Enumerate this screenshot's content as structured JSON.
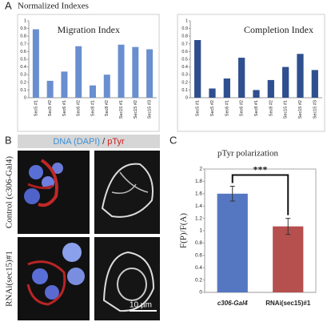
{
  "panels": {
    "a": "A",
    "b": "B",
    "c": "C"
  },
  "heading": "Normalized Indexes",
  "chart_data": [
    {
      "type": "bar",
      "title": "Migration Index",
      "categories": [
        "Sec5 #1",
        "Sec5 #2",
        "Sec6 #1",
        "Sec6 #2",
        "Sec8 #1",
        "Sec8 #2",
        "Sec15 #1",
        "Sec15 #2",
        "Sec15 #3"
      ],
      "values": [
        0.89,
        0.22,
        0.34,
        0.67,
        0.16,
        0.3,
        0.69,
        0.66,
        0.63
      ],
      "color": "#6a8fd0",
      "ylim": [
        0,
        1
      ],
      "yticks": [
        0,
        0.1,
        0.2,
        0.3,
        0.4,
        0.5,
        0.6,
        0.7,
        0.8,
        0.9,
        1
      ]
    },
    {
      "type": "bar",
      "title": "Completion Index",
      "categories": [
        "Sec5 #1",
        "Sec5 #2",
        "Sec6 #1",
        "Sec6 #2",
        "Sec8 #1",
        "Sec8 #2",
        "Sec15 #1",
        "Sec15 #2",
        "Sec15 #3"
      ],
      "values": [
        0.75,
        0.12,
        0.25,
        0.52,
        0.1,
        0.23,
        0.4,
        0.57,
        0.36
      ],
      "color": "#2f4f8f",
      "ylim": [
        0,
        1
      ],
      "yticks": [
        0,
        0.1,
        0.2,
        0.3,
        0.4,
        0.5,
        0.6,
        0.7,
        0.8,
        0.9,
        1
      ]
    },
    {
      "type": "bar",
      "title": "pTyr polarization",
      "y_label": "F(P)/F(A)",
      "annotation": "***",
      "categories": [
        "c306-Gal4",
        "RNAi(sec15)#1"
      ],
      "values": [
        1.6,
        1.07
      ],
      "errors": [
        0.12,
        0.13
      ],
      "colors": [
        "#5577c2",
        "#b5504e"
      ],
      "ylim": [
        0,
        2
      ],
      "yticks": [
        0,
        0.2,
        0.4,
        0.6,
        0.8,
        1,
        1.2,
        1.4,
        1.6,
        1.8,
        2
      ]
    }
  ],
  "microscopy": {
    "stain_dna": "DNA (DAPI)",
    "separator": " / ",
    "stain_ptyr": "pTyr",
    "rows": [
      "Control (c306-Gal4)",
      "RNAi(sec15)#1"
    ],
    "scale_bar": "10 µm"
  }
}
